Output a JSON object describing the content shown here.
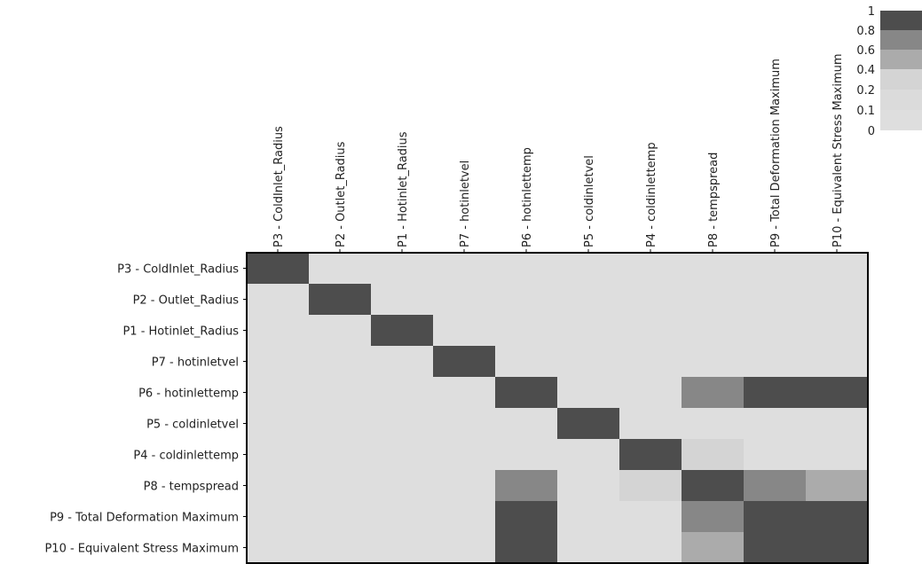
{
  "chart_data": {
    "type": "heatmap",
    "title": "",
    "rows": [
      "P3 - ColdInlet_Radius",
      "P2 - Outlet_Radius",
      "P1 - Hotinlet_Radius",
      "P7 - hotinletvel",
      "P6 - hotinlettemp",
      "P5 - coldinletvel",
      "P4 - coldinlettemp",
      "P8 - tempspread",
      "P9 - Total Deformation Maximum",
      "P10 - Equivalent Stress Maximum"
    ],
    "columns": [
      "P3 - ColdInlet_Radius",
      "P2 - Outlet_Radius",
      "P1 - Hotinlet_Radius",
      "P7 - hotinletvel",
      "P6 - hotinlettemp",
      "P5 - coldinletvel",
      "P4 - coldinlettemp",
      "P8 - tempspread",
      "P9 - Total Deformation Maximum",
      "P10 - Equivalent Stress Maximum"
    ],
    "values": [
      [
        1,
        0.05,
        0.05,
        0.05,
        0.05,
        0.05,
        0.05,
        0.05,
        0.05,
        0.05
      ],
      [
        0.05,
        1,
        0.05,
        0.05,
        0.05,
        0.05,
        0.05,
        0.05,
        0.05,
        0.05
      ],
      [
        0.05,
        0.05,
        1,
        0.05,
        0.05,
        0.05,
        0.05,
        0.05,
        0.05,
        0.05
      ],
      [
        0.05,
        0.05,
        0.05,
        1,
        0.05,
        0.05,
        0.05,
        0.05,
        0.05,
        0.05
      ],
      [
        0.05,
        0.05,
        0.05,
        0.05,
        1,
        0.05,
        0.05,
        0.7,
        0.95,
        0.95
      ],
      [
        0.05,
        0.05,
        0.05,
        0.05,
        0.05,
        1,
        0.05,
        0.05,
        0.05,
        0.05
      ],
      [
        0.05,
        0.05,
        0.05,
        0.05,
        0.05,
        0.05,
        1,
        0.3,
        0.05,
        0.05
      ],
      [
        0.05,
        0.05,
        0.05,
        0.05,
        0.7,
        0.05,
        0.3,
        1,
        0.7,
        0.5
      ],
      [
        0.05,
        0.05,
        0.05,
        0.05,
        0.95,
        0.05,
        0.05,
        0.7,
        1,
        0.95
      ],
      [
        0.05,
        0.05,
        0.05,
        0.05,
        0.95,
        0.05,
        0.05,
        0.5,
        0.95,
        1
      ]
    ],
    "colorbar": {
      "tick_labels": [
        "1",
        "0.8",
        "0.6",
        "0.4",
        "0.2",
        "0.1",
        "0"
      ],
      "bounds": [
        1,
        0.8,
        0.6,
        0.4,
        0.2,
        0.1,
        0
      ],
      "colors": [
        "#4d4d4d",
        "#878787",
        "#ababab",
        "#d4d4d4",
        "#dbdbdb",
        "#dedede"
      ]
    },
    "grid": false
  }
}
